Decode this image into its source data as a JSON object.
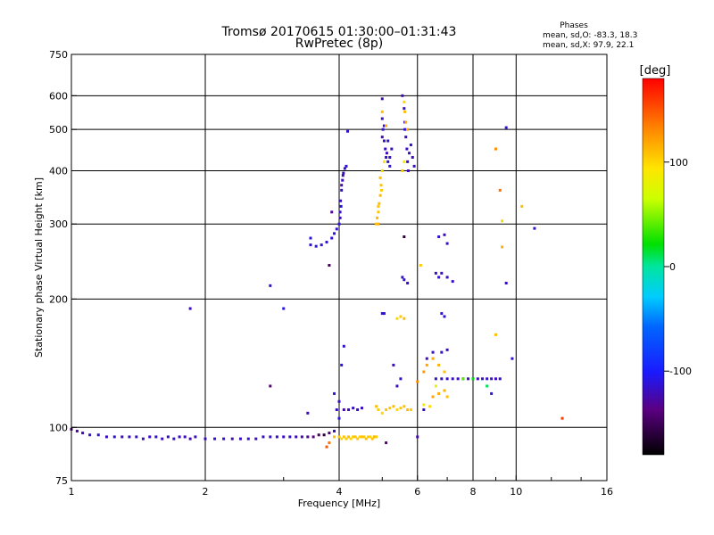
{
  "title": {
    "line1": "Tromsø 20170615 01:30:00–01:31:43",
    "line2": "RwPretec (8p)"
  },
  "phase_stats": {
    "heading": "Phases",
    "line_o": "mean, sd,O: -83.3, 18.3",
    "line_x": "mean, sd,X:  97.9, 22.1"
  },
  "colorbar": {
    "unit": "[deg]",
    "ticks": [
      "100",
      "0",
      "-100"
    ],
    "tick_values": [
      100,
      0,
      -100
    ],
    "range": [
      -180,
      180
    ]
  },
  "chart_data": {
    "type": "scatter",
    "x_scale": "log",
    "y_scale": "log",
    "xlabel": "Frequency [MHz]",
    "ylabel": "Stationary phase Virtual Height [km]",
    "xlim": [
      1,
      16
    ],
    "ylim": [
      75,
      750
    ],
    "grid": true,
    "x_ticks": [
      1,
      2,
      4,
      6,
      8,
      10,
      16
    ],
    "x_tick_labels": [
      "1",
      "2",
      "4",
      "6",
      "8",
      "10",
      "16"
    ],
    "y_ticks": [
      75,
      100,
      200,
      300,
      400,
      500,
      600,
      750
    ],
    "y_tick_labels": [
      "75",
      "100",
      "200",
      "300",
      "400",
      "500",
      "600",
      "750"
    ],
    "series": [
      {
        "mode": "O",
        "points": [
          [
            1.0,
            99,
            -140
          ],
          [
            1.03,
            98,
            -130
          ],
          [
            1.06,
            97,
            -120
          ],
          [
            1.1,
            96,
            -115
          ],
          [
            1.15,
            96,
            -118
          ],
          [
            1.2,
            95,
            -120
          ],
          [
            1.25,
            95,
            -112
          ],
          [
            1.3,
            95,
            -120
          ],
          [
            1.35,
            95,
            -118
          ],
          [
            1.4,
            95,
            -115
          ],
          [
            1.45,
            94,
            -120
          ],
          [
            1.5,
            95,
            -118
          ],
          [
            1.55,
            95,
            -115
          ],
          [
            1.6,
            94,
            -120
          ],
          [
            1.65,
            95,
            -118
          ],
          [
            1.7,
            94,
            -115
          ],
          [
            1.75,
            95,
            -118
          ],
          [
            1.8,
            95,
            -120
          ],
          [
            1.85,
            94,
            -125
          ],
          [
            1.9,
            95,
            -118
          ],
          [
            2.0,
            94,
            -120
          ],
          [
            2.1,
            94,
            -115
          ],
          [
            2.2,
            94,
            -118
          ],
          [
            2.3,
            94,
            -120
          ],
          [
            2.4,
            94,
            -118
          ],
          [
            2.5,
            94,
            -115
          ],
          [
            2.6,
            94,
            -120
          ],
          [
            2.7,
            95,
            -118
          ],
          [
            2.8,
            95,
            -115
          ],
          [
            2.9,
            95,
            -120
          ],
          [
            3.0,
            95,
            -118
          ],
          [
            3.1,
            95,
            -115
          ],
          [
            3.2,
            95,
            -120
          ],
          [
            3.3,
            95,
            -122
          ],
          [
            3.4,
            95,
            -130
          ],
          [
            3.5,
            95,
            -140
          ],
          [
            3.6,
            96,
            -150
          ],
          [
            3.7,
            96,
            -160
          ],
          [
            3.8,
            97,
            -145
          ],
          [
            3.9,
            98,
            -120
          ],
          [
            1.85,
            190,
            -120
          ],
          [
            2.8,
            125,
            -140
          ],
          [
            2.8,
            215,
            -115
          ],
          [
            3.0,
            190,
            -110
          ],
          [
            3.45,
            278,
            -110
          ],
          [
            3.45,
            268,
            -115
          ],
          [
            3.55,
            266,
            -110
          ],
          [
            3.65,
            268,
            -112
          ],
          [
            3.75,
            272,
            -110
          ],
          [
            3.85,
            278,
            -112
          ],
          [
            3.9,
            285,
            -110
          ],
          [
            3.95,
            292,
            -115
          ],
          [
            4.0,
            300,
            -112
          ],
          [
            4.02,
            320,
            -115
          ],
          [
            4.03,
            340,
            -118
          ],
          [
            4.05,
            360,
            -115
          ],
          [
            4.07,
            380,
            -120
          ],
          [
            4.09,
            395,
            -118
          ],
          [
            4.12,
            405,
            -115
          ],
          [
            4.15,
            410,
            -112
          ],
          [
            4.05,
            370,
            -125
          ],
          [
            4.04,
            330,
            -110
          ],
          [
            4.02,
            310,
            -118
          ],
          [
            4.08,
            390,
            -122
          ],
          [
            4.18,
            495,
            -115
          ],
          [
            3.85,
            320,
            -130
          ],
          [
            3.8,
            240,
            -150
          ],
          [
            3.95,
            110,
            -120
          ],
          [
            4.0,
            115,
            -118
          ],
          [
            4.1,
            110,
            -125
          ],
          [
            4.2,
            110,
            -120
          ],
          [
            4.3,
            111,
            -118
          ],
          [
            4.4,
            110,
            -115
          ],
          [
            4.5,
            111,
            -120
          ],
          [
            4.0,
            105,
            -110
          ],
          [
            3.4,
            108,
            -120
          ],
          [
            3.9,
            120,
            -110
          ],
          [
            4.1,
            155,
            -115
          ],
          [
            4.05,
            140,
            -110
          ],
          [
            5.0,
            590,
            -120
          ],
          [
            5.0,
            530,
            -118
          ],
          [
            5.02,
            500,
            -115
          ],
          [
            5.05,
            470,
            -120
          ],
          [
            5.08,
            450,
            -118
          ],
          [
            5.1,
            430,
            -115
          ],
          [
            5.12,
            440,
            -122
          ],
          [
            5.15,
            420,
            -118
          ],
          [
            5.2,
            410,
            -115
          ],
          [
            5.25,
            450,
            -120
          ],
          [
            5.0,
            480,
            -125
          ],
          [
            5.05,
            510,
            -118
          ],
          [
            5.15,
            470,
            -112
          ],
          [
            5.2,
            430,
            -120
          ],
          [
            5.55,
            600,
            -120
          ],
          [
            5.6,
            560,
            -118
          ],
          [
            5.62,
            520,
            -115
          ],
          [
            5.65,
            480,
            -120
          ],
          [
            5.68,
            450,
            -118
          ],
          [
            5.7,
            420,
            -115
          ],
          [
            5.72,
            400,
            -122
          ],
          [
            5.75,
            440,
            -118
          ],
          [
            5.8,
            460,
            -115
          ],
          [
            5.85,
            430,
            -120
          ],
          [
            5.9,
            410,
            -118
          ],
          [
            5.62,
            500,
            -112
          ],
          [
            5.55,
            225,
            -115
          ],
          [
            5.6,
            222,
            -118
          ],
          [
            5.0,
            185,
            -110
          ],
          [
            5.05,
            185,
            -115
          ],
          [
            5.3,
            140,
            -120
          ],
          [
            5.5,
            130,
            -115
          ],
          [
            5.4,
            125,
            -120
          ],
          [
            5.7,
            218,
            -120
          ],
          [
            6.6,
            230,
            -120
          ],
          [
            6.8,
            230,
            -118
          ],
          [
            6.7,
            225,
            -115
          ],
          [
            7.0,
            225,
            -120
          ],
          [
            7.2,
            220,
            -118
          ],
          [
            6.7,
            280,
            -115
          ],
          [
            6.9,
            283,
            -120
          ],
          [
            7.0,
            270,
            -118
          ],
          [
            6.8,
            185,
            -110
          ],
          [
            6.9,
            182,
            -115
          ],
          [
            6.3,
            145,
            -120
          ],
          [
            6.5,
            150,
            -118
          ],
          [
            6.8,
            150,
            -115
          ],
          [
            7.0,
            152,
            -120
          ],
          [
            6.2,
            110,
            -118
          ],
          [
            6.0,
            95,
            -125
          ],
          [
            5.6,
            280,
            -160
          ],
          [
            5.1,
            92,
            -140
          ],
          [
            4.8,
            95,
            -130
          ],
          [
            6.6,
            130,
            -115
          ],
          [
            6.8,
            130,
            -118
          ],
          [
            7.0,
            130,
            -120
          ],
          [
            7.2,
            130,
            -115
          ],
          [
            7.4,
            130,
            -118
          ],
          [
            7.6,
            130,
            -120
          ],
          [
            7.8,
            130,
            -115
          ],
          [
            8.0,
            130,
            -118
          ],
          [
            8.2,
            130,
            -120
          ],
          [
            8.4,
            130,
            -118
          ],
          [
            8.6,
            130,
            -115
          ],
          [
            8.8,
            130,
            -118
          ],
          [
            9.0,
            130,
            -120
          ],
          [
            9.2,
            130,
            -118
          ],
          [
            9.5,
            505,
            -115
          ],
          [
            9.5,
            218,
            -118
          ],
          [
            11.0,
            293,
            -115
          ],
          [
            8.8,
            120,
            -110
          ],
          [
            9.8,
            145,
            -115
          ]
        ]
      },
      {
        "mode": "X",
        "points": [
          [
            3.9,
            95,
            110
          ],
          [
            4.0,
            95,
            105
          ],
          [
            4.05,
            94,
            100
          ],
          [
            4.1,
            95,
            108
          ],
          [
            4.15,
            94,
            105
          ],
          [
            4.2,
            95,
            110
          ],
          [
            4.25,
            94,
            100
          ],
          [
            4.3,
            95,
            105
          ],
          [
            4.35,
            95,
            108
          ],
          [
            4.4,
            94,
            105
          ],
          [
            4.45,
            95,
            100
          ],
          [
            4.5,
            95,
            110
          ],
          [
            4.55,
            95,
            105
          ],
          [
            4.6,
            94,
            108
          ],
          [
            4.65,
            95,
            105
          ],
          [
            4.7,
            95,
            100
          ],
          [
            4.75,
            94,
            108
          ],
          [
            4.8,
            95,
            110
          ],
          [
            4.85,
            95,
            105
          ],
          [
            3.8,
            92,
            140
          ],
          [
            3.75,
            90,
            150
          ],
          [
            4.85,
            300,
            110
          ],
          [
            4.87,
            310,
            112
          ],
          [
            4.9,
            320,
            108
          ],
          [
            4.92,
            335,
            110
          ],
          [
            4.95,
            350,
            112
          ],
          [
            4.97,
            370,
            108
          ],
          [
            4.9,
            300,
            115
          ],
          [
            4.95,
            385,
            110
          ],
          [
            4.98,
            360,
            105
          ],
          [
            4.9,
            330,
            108
          ],
          [
            5.0,
            400,
            100
          ],
          [
            5.05,
            420,
            95
          ],
          [
            5.0,
            550,
            110
          ],
          [
            5.1,
            510,
            115
          ],
          [
            5.6,
            580,
            100
          ],
          [
            5.62,
            550,
            110
          ],
          [
            5.65,
            520,
            118
          ],
          [
            5.6,
            420,
            95
          ],
          [
            5.55,
            400,
            105
          ],
          [
            5.7,
            500,
            120
          ],
          [
            4.9,
            110,
            105
          ],
          [
            5.0,
            108,
            100
          ],
          [
            5.1,
            110,
            108
          ],
          [
            5.2,
            111,
            105
          ],
          [
            5.3,
            112,
            110
          ],
          [
            5.4,
            110,
            100
          ],
          [
            5.5,
            111,
            105
          ],
          [
            5.6,
            112,
            108
          ],
          [
            5.7,
            110,
            110
          ],
          [
            5.8,
            110,
            105
          ],
          [
            4.85,
            112,
            112
          ],
          [
            5.4,
            180,
            100
          ],
          [
            5.5,
            182,
            105
          ],
          [
            5.6,
            180,
            110
          ],
          [
            6.3,
            140,
            120
          ],
          [
            6.5,
            145,
            118
          ],
          [
            6.7,
            140,
            115
          ],
          [
            6.9,
            135,
            110
          ],
          [
            6.5,
            118,
            120
          ],
          [
            6.7,
            120,
            118
          ],
          [
            6.9,
            122,
            115
          ],
          [
            7.0,
            118,
            110
          ],
          [
            6.0,
            128,
            130
          ],
          [
            6.2,
            135,
            125
          ],
          [
            6.1,
            240,
            105
          ],
          [
            6.6,
            125,
            80
          ],
          [
            7.6,
            130,
            40
          ],
          [
            8.0,
            130,
            20
          ],
          [
            8.6,
            125,
            10
          ],
          [
            9.0,
            450,
            130
          ],
          [
            9.2,
            360,
            140
          ],
          [
            9.3,
            305,
            100
          ],
          [
            10.3,
            330,
            110
          ],
          [
            9.3,
            265,
            115
          ],
          [
            9.0,
            165,
            110
          ],
          [
            12.7,
            105,
            160
          ],
          [
            6.2,
            113,
            90
          ],
          [
            6.4,
            112,
            100
          ]
        ]
      }
    ]
  }
}
